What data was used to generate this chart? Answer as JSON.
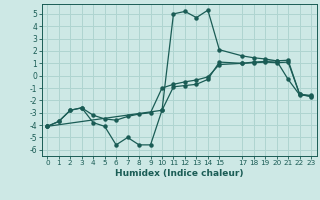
{
  "xlabel": "Humidex (Indice chaleur)",
  "bg_color": "#cde8e5",
  "grid_color": "#afd4d0",
  "line_color": "#1a5c55",
  "xlim": [
    -0.5,
    23.5
  ],
  "ylim": [
    -6.5,
    5.8
  ],
  "xticks": [
    0,
    1,
    2,
    3,
    4,
    5,
    6,
    7,
    8,
    9,
    10,
    11,
    12,
    13,
    14,
    15,
    17,
    18,
    19,
    20,
    21,
    22,
    23
  ],
  "xtick_labels": [
    "0",
    "1",
    "2",
    "3",
    "4",
    "5",
    "6",
    "7",
    "8",
    "9",
    "10",
    "11",
    "12",
    "13",
    "14",
    "15",
    "17",
    "18",
    "19",
    "20",
    "21",
    "22",
    "23"
  ],
  "yticks": [
    -6,
    -5,
    -4,
    -3,
    -2,
    -1,
    0,
    1,
    2,
    3,
    4,
    5
  ],
  "line1_x": [
    0,
    1,
    2,
    3,
    4,
    5,
    6,
    7,
    8,
    9,
    10,
    11,
    12,
    13,
    14,
    15,
    17,
    18,
    19,
    20,
    21,
    22,
    23
  ],
  "line1_y": [
    -4.1,
    -3.7,
    -2.8,
    -2.6,
    -3.8,
    -4.1,
    -5.6,
    -5.0,
    -5.6,
    -5.6,
    -2.8,
    -0.9,
    -0.8,
    -0.7,
    -0.3,
    1.1,
    1.0,
    1.05,
    1.1,
    1.05,
    1.1,
    -1.5,
    -1.7
  ],
  "line2_x": [
    0,
    1,
    2,
    3,
    4,
    5,
    6,
    7,
    8,
    9,
    10,
    11,
    12,
    13,
    14,
    15,
    17,
    18,
    19,
    20,
    21,
    22,
    23
  ],
  "line2_y": [
    -4.1,
    -3.7,
    -2.8,
    -2.6,
    -3.2,
    -3.5,
    -3.6,
    -3.3,
    -3.1,
    -3.0,
    -1.0,
    -0.7,
    -0.5,
    -0.35,
    -0.1,
    0.9,
    1.0,
    1.1,
    1.15,
    1.2,
    1.25,
    -1.5,
    -1.6
  ],
  "line3_x": [
    0,
    10,
    11,
    12,
    13,
    14,
    15,
    17,
    18,
    19,
    20,
    21,
    22,
    23
  ],
  "line3_y": [
    -4.1,
    -2.8,
    5.0,
    5.2,
    4.7,
    5.3,
    2.1,
    1.6,
    1.45,
    1.35,
    1.2,
    -0.3,
    -1.55,
    -1.65
  ]
}
